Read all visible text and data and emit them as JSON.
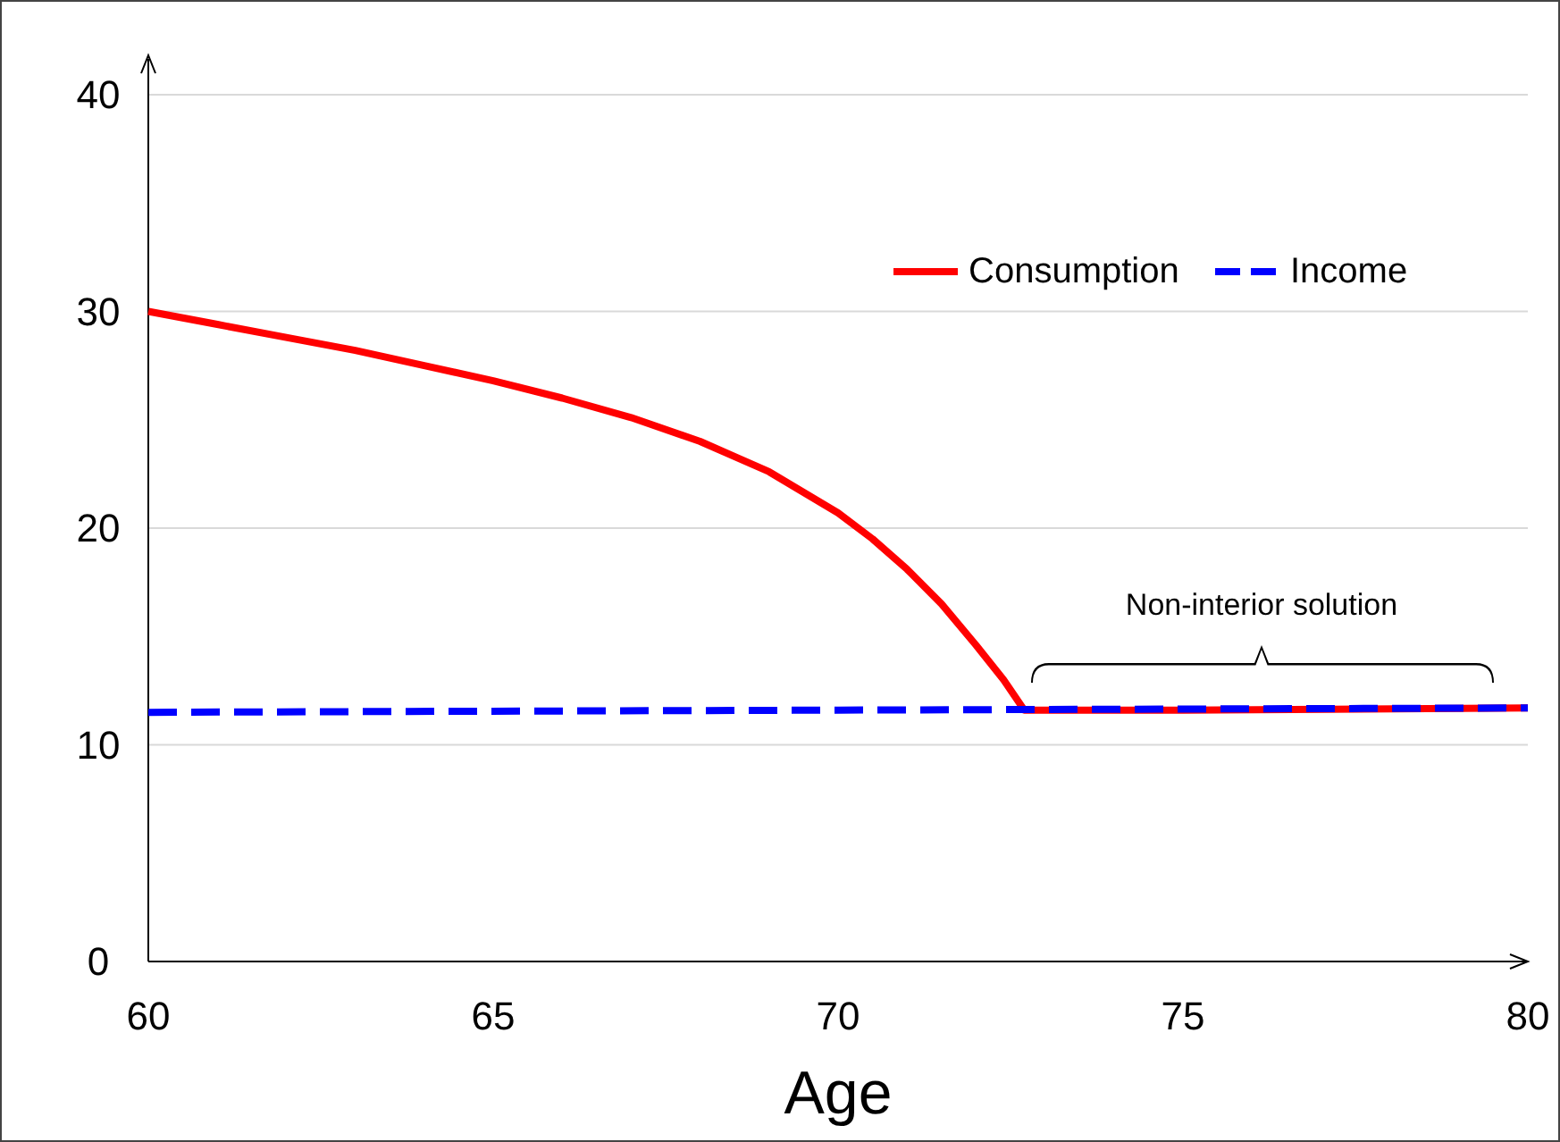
{
  "chart_data": {
    "type": "line",
    "xlabel": "Age",
    "xlim": [
      60,
      80
    ],
    "xticks": [
      60,
      65,
      70,
      75,
      80
    ],
    "ylim": [
      0,
      40
    ],
    "yticks": [
      0,
      10,
      20,
      30,
      40
    ],
    "grid": "y",
    "legend": "top right",
    "series": [
      {
        "name": "Consumption",
        "color": "#ff0000",
        "line_style": "solid",
        "x": [
          60,
          61,
          62,
          63,
          64,
          65,
          66,
          67,
          68,
          69,
          70,
          70.5,
          71,
          71.5,
          72,
          72.4,
          72.7,
          75,
          80
        ],
        "values": [
          30,
          29.4,
          28.8,
          28.2,
          27.5,
          26.8,
          26,
          25.1,
          24,
          22.6,
          20.7,
          19.5,
          18.1,
          16.5,
          14.6,
          13,
          11.6,
          11.6,
          11.7
        ]
      },
      {
        "name": "Income",
        "color": "#0000ff",
        "line_style": "dashed",
        "x": [
          60,
          70,
          80
        ],
        "values": [
          11.5,
          11.6,
          11.7
        ]
      }
    ],
    "annotations": [
      "Non-interior solution"
    ]
  }
}
